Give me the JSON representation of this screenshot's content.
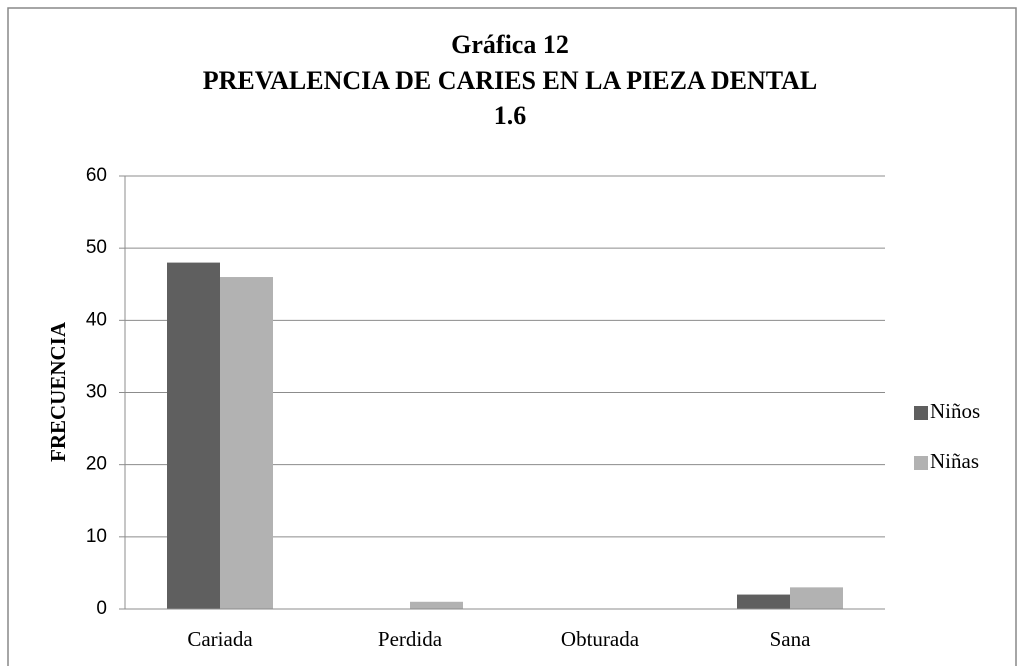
{
  "chart_data": {
    "type": "bar",
    "title": [
      "Gráfica 12",
      "PREVALENCIA DE CARIES EN LA PIEZA DENTAL",
      "1.6"
    ],
    "ylabel": "FRECUENCIA",
    "categories": [
      "Cariada",
      "Perdida",
      "Obturada",
      "Sana"
    ],
    "series": [
      {
        "name": "Niños",
        "color": "#5f5f5f",
        "values": [
          48,
          0,
          0,
          2
        ]
      },
      {
        "name": "Niñas",
        "color": "#b2b2b2",
        "values": [
          46,
          1,
          0,
          3
        ]
      }
    ],
    "ylim": [
      0,
      60
    ],
    "yticks": [
      0,
      10,
      20,
      30,
      40,
      50,
      60
    ],
    "grid": true,
    "legend": "right"
  }
}
